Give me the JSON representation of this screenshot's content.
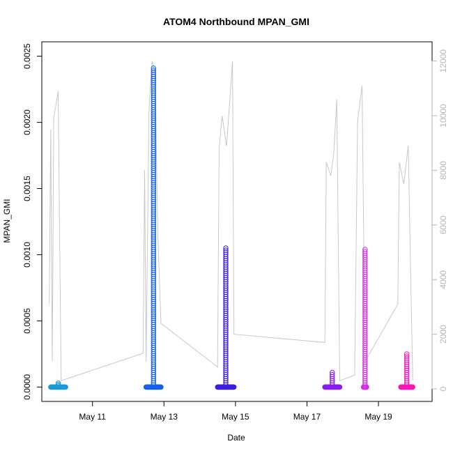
{
  "chart_data": {
    "type": "scatter",
    "title": "ATOM4 Northbound MPAN_GMI",
    "xlabel": "Date",
    "ylabel": "MPAN_GMI",
    "x_unit": "date (2016 implied, May)",
    "xlim": [
      "May 09 14:00",
      "May 20 12:00"
    ],
    "x_ticks": [
      {
        "date": "May 11",
        "label": "May 11"
      },
      {
        "date": "May 13",
        "label": "May 13"
      },
      {
        "date": "May 15",
        "label": "May 15"
      },
      {
        "date": "May 17",
        "label": "May 17"
      },
      {
        "date": "May 19",
        "label": "May 19"
      }
    ],
    "ylim": [
      0,
      0.0025
    ],
    "y_ticks": [
      "0.0000",
      "0.0005",
      "0.0010",
      "0.0015",
      "0.0020",
      "0.0025"
    ],
    "y2lim": [
      0,
      12500
    ],
    "y2_ticks": [
      "0",
      "2000",
      "4000",
      "6000",
      "8000",
      "10000",
      "12000"
    ],
    "grid": false,
    "legend": "none",
    "series": [
      {
        "color": "#1a9ad8",
        "start": "May 09 20:00",
        "end": "May 10 06:00",
        "max": 3e-05
      },
      {
        "color": "#1560f0",
        "start": "May 12 12:00",
        "end": "May 12 22:00",
        "max": 0.00241
      },
      {
        "color": "#3b1ee6",
        "start": "May 14 12:00",
        "end": "May 14 23:00",
        "max": 0.00105
      },
      {
        "color": "#8a1cf0",
        "start": "May 17 12:00",
        "end": "May 17 22:00",
        "max": 0.00011
      },
      {
        "color": "#d62ee6",
        "start": "May 18 14:00",
        "end": "May 18 16:00",
        "max": 0.00104
      },
      {
        "color": "#ff14b8",
        "start": "May 19 15:00",
        "end": "May 19 23:00",
        "max": 0.00025
      }
    ],
    "altitude_line": {
      "color": "#c8c8c8",
      "points": [
        [
          "May 09 19:00",
          3100
        ],
        [
          "May 09 20:00",
          9500
        ],
        [
          "May 09 21:00",
          1000
        ],
        [
          "May 09 22:00",
          9900
        ],
        [
          "May 10 01:00",
          10900
        ],
        [
          "May 10 02:00",
          5500
        ],
        [
          "May 10 03:00",
          300
        ],
        [
          "May 12 10:00",
          1300
        ],
        [
          "May 12 11:00",
          8000
        ],
        [
          "May 12 12:00",
          1000
        ],
        [
          "May 12 14:00",
          10300
        ],
        [
          "May 12 16:00",
          12000
        ],
        [
          "May 12 18:00",
          11600
        ],
        [
          "May 12 20:00",
          5500
        ],
        [
          "May 12 22:00",
          2400
        ],
        [
          "May 14 12:00",
          800
        ],
        [
          "May 14 13:00",
          8800
        ],
        [
          "May 14 15:00",
          10000
        ],
        [
          "May 14 18:00",
          8900
        ],
        [
          "May 14 20:00",
          10400
        ],
        [
          "May 14 22:00",
          12000
        ],
        [
          "May 14 23:00",
          2000
        ],
        [
          "May 17 12:00",
          1700
        ],
        [
          "May 17 13:00",
          8300
        ],
        [
          "May 17 16:00",
          7800
        ],
        [
          "May 17 18:00",
          8600
        ],
        [
          "May 17 20:00",
          10600
        ],
        [
          "May 17 22:00",
          300
        ],
        [
          "May 18 08:00",
          500
        ],
        [
          "May 18 10:00",
          9800
        ],
        [
          "May 18 13:00",
          11100
        ],
        [
          "May 18 15:00",
          1000
        ],
        [
          "May 19 13:00",
          3100
        ],
        [
          "May 19 14:00",
          8300
        ],
        [
          "May 19 17:00",
          7500
        ],
        [
          "May 19 20:00",
          8900
        ],
        [
          "May 19 23:00",
          300
        ]
      ]
    }
  }
}
